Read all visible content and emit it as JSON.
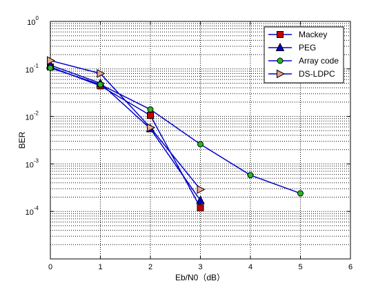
{
  "chart_data": {
    "type": "line",
    "xlabel": "Eb/N0（dB）",
    "ylabel": "BER",
    "xlim": [
      0,
      6
    ],
    "ylim": [
      1e-05,
      1
    ],
    "yscale": "log",
    "grid": true,
    "legend_position": "top-right",
    "x_ticks": [
      "0",
      "1",
      "2",
      "3",
      "4",
      "5",
      "6"
    ],
    "y_tick_base": "10",
    "y_tick_exponents": [
      "0",
      "-1",
      "-2",
      "-3",
      "-4"
    ],
    "line_color": "#0000cc",
    "series": [
      {
        "name": "Mackey",
        "marker": "square",
        "color": "#cc0000",
        "x": [
          0,
          1,
          2,
          3
        ],
        "y": [
          0.11,
          0.044,
          0.0105,
          0.00012
        ]
      },
      {
        "name": "PEG",
        "marker": "triangle-up",
        "color": "#0000cc",
        "x": [
          0,
          1,
          2,
          3
        ],
        "y": [
          0.12,
          0.05,
          0.0055,
          0.00017
        ]
      },
      {
        "name": "Array code",
        "marker": "circle",
        "color": "#22bb22",
        "x": [
          0,
          1,
          2,
          3,
          4,
          5
        ],
        "y": [
          0.105,
          0.047,
          0.014,
          0.0026,
          0.00058,
          0.00024
        ]
      },
      {
        "name": "DS-LDPC",
        "marker": "triangle-right",
        "color": "#e8a090",
        "x": [
          0,
          1,
          2,
          3
        ],
        "y": [
          0.15,
          0.08,
          0.0058,
          0.00029
        ]
      }
    ]
  }
}
